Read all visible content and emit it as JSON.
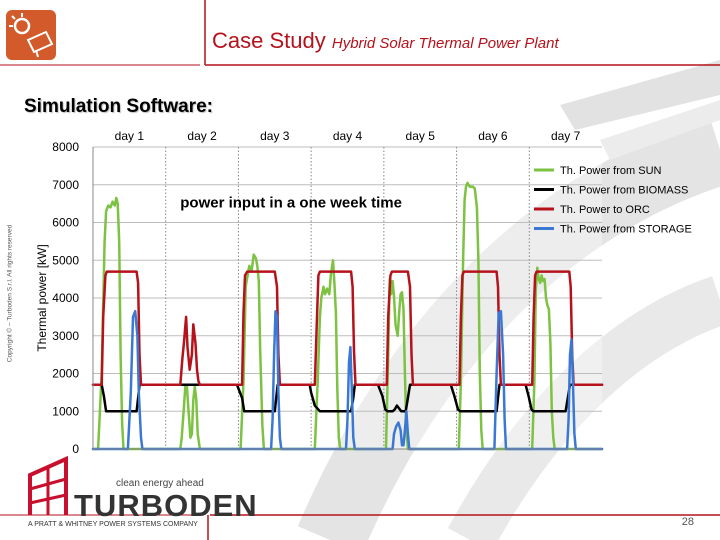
{
  "header": {
    "title": "Case Study",
    "subtitle": "Hybrid Solar Thermal Power Plant",
    "accent_color": "#b5121b"
  },
  "section": {
    "heading": "Simulation Software:"
  },
  "sidebar": {
    "copyright": "Copyright © – Turboden S.r.l. All rights reserved"
  },
  "footer": {
    "brand_tagline": "clean energy ahead",
    "brand_name": "TURBODEN",
    "brand_caption": "A PRATT & WHITNEY POWER SYSTEMS COMPANY",
    "page_number": "28"
  },
  "chart_data": {
    "type": "line",
    "title": "",
    "annotation": "power input in a one week time",
    "xlabel": "",
    "ylabel": "Thermal power [kW]",
    "ylim": [
      0,
      8000
    ],
    "yticks": [
      0,
      1000,
      2000,
      3000,
      4000,
      5000,
      6000,
      7000,
      8000
    ],
    "xlim": [
      0,
      7
    ],
    "categories": [
      "day 1",
      "day 2",
      "day 3",
      "day 4",
      "day 5",
      "day 6",
      "day 7"
    ],
    "grid": "horizontal and dotted day separators",
    "legend_position": "top-right",
    "series": [
      {
        "name": "Th. Power from SUN",
        "color": "#7dc242",
        "width": 2.5,
        "points": [
          [
            0,
            0
          ],
          [
            0.07,
            0
          ],
          [
            0.12,
            2000
          ],
          [
            0.16,
            5500
          ],
          [
            0.18,
            6300
          ],
          [
            0.21,
            6450
          ],
          [
            0.24,
            6400
          ],
          [
            0.27,
            6550
          ],
          [
            0.3,
            6450
          ],
          [
            0.32,
            6650
          ],
          [
            0.34,
            6500
          ],
          [
            0.36,
            5500
          ],
          [
            0.38,
            2500
          ],
          [
            0.4,
            700
          ],
          [
            0.42,
            0
          ],
          [
            1.2,
            0
          ],
          [
            1.22,
            300
          ],
          [
            1.25,
            1100
          ],
          [
            1.27,
            1650
          ],
          [
            1.29,
            1700
          ],
          [
            1.31,
            1100
          ],
          [
            1.34,
            300
          ],
          [
            1.36,
            400
          ],
          [
            1.38,
            1300
          ],
          [
            1.4,
            1650
          ],
          [
            1.42,
            1300
          ],
          [
            1.44,
            400
          ],
          [
            1.47,
            0
          ],
          [
            2.03,
            0
          ],
          [
            2.07,
            1800
          ],
          [
            2.1,
            4300
          ],
          [
            2.13,
            4650
          ],
          [
            2.15,
            4850
          ],
          [
            2.18,
            4700
          ],
          [
            2.21,
            5150
          ],
          [
            2.24,
            5050
          ],
          [
            2.26,
            4850
          ],
          [
            2.28,
            4450
          ],
          [
            2.3,
            2600
          ],
          [
            2.33,
            600
          ],
          [
            2.35,
            0
          ],
          [
            3.05,
            0
          ],
          [
            3.09,
            1800
          ],
          [
            3.12,
            3500
          ],
          [
            3.14,
            4000
          ],
          [
            3.17,
            4300
          ],
          [
            3.19,
            4100
          ],
          [
            3.22,
            4250
          ],
          [
            3.25,
            4100
          ],
          [
            3.27,
            4600
          ],
          [
            3.3,
            5000
          ],
          [
            3.32,
            4400
          ],
          [
            3.34,
            3600
          ],
          [
            3.36,
            1600
          ],
          [
            3.38,
            300
          ],
          [
            3.4,
            0
          ],
          [
            4.03,
            0
          ],
          [
            4.06,
            2500
          ],
          [
            4.08,
            4500
          ],
          [
            4.1,
            4100
          ],
          [
            4.12,
            4450
          ],
          [
            4.14,
            4050
          ],
          [
            4.16,
            3300
          ],
          [
            4.19,
            3000
          ],
          [
            4.21,
            3600
          ],
          [
            4.23,
            4100
          ],
          [
            4.25,
            4150
          ],
          [
            4.27,
            3700
          ],
          [
            4.29,
            2000
          ],
          [
            4.31,
            500
          ],
          [
            4.33,
            0
          ],
          [
            5.03,
            0
          ],
          [
            5.06,
            1800
          ],
          [
            5.09,
            5000
          ],
          [
            5.11,
            6600
          ],
          [
            5.13,
            6950
          ],
          [
            5.15,
            7050
          ],
          [
            5.18,
            6950
          ],
          [
            5.22,
            6950
          ],
          [
            5.25,
            6900
          ],
          [
            5.28,
            6400
          ],
          [
            5.3,
            5000
          ],
          [
            5.32,
            2000
          ],
          [
            5.34,
            500
          ],
          [
            5.36,
            0
          ],
          [
            6.04,
            0
          ],
          [
            6.07,
            1800
          ],
          [
            6.09,
            4200
          ],
          [
            6.11,
            4800
          ],
          [
            6.13,
            4500
          ],
          [
            6.15,
            4400
          ],
          [
            6.17,
            4600
          ],
          [
            6.19,
            4450
          ],
          [
            6.21,
            4500
          ],
          [
            6.23,
            4000
          ],
          [
            6.25,
            3800
          ],
          [
            6.27,
            3700
          ],
          [
            6.29,
            2800
          ],
          [
            6.31,
            1000
          ],
          [
            6.33,
            300
          ],
          [
            6.35,
            0
          ],
          [
            7,
            0
          ]
        ]
      },
      {
        "name": "Th. Power from BIOMASS",
        "color": "#000000",
        "width": 2.5,
        "points": [
          [
            0,
            1700
          ],
          [
            0.12,
            1700
          ],
          [
            0.15,
            1400
          ],
          [
            0.18,
            1000
          ],
          [
            0.6,
            1000
          ],
          [
            0.62,
            1350
          ],
          [
            0.64,
            1700
          ],
          [
            1.88,
            1700
          ],
          [
            1.92,
            1700
          ],
          [
            1.98,
            1700
          ],
          [
            2.05,
            1350
          ],
          [
            2.08,
            1000
          ],
          [
            2.5,
            1000
          ],
          [
            2.52,
            1350
          ],
          [
            2.54,
            1700
          ],
          [
            2.98,
            1700
          ],
          [
            3.0,
            1500
          ],
          [
            3.05,
            1150
          ],
          [
            3.12,
            1000
          ],
          [
            3.4,
            1000
          ],
          [
            3.55,
            1000
          ],
          [
            3.58,
            1350
          ],
          [
            3.6,
            1700
          ],
          [
            3.92,
            1700
          ],
          [
            3.98,
            1400
          ],
          [
            4.02,
            1050
          ],
          [
            4.05,
            1000
          ],
          [
            4.12,
            1000
          ],
          [
            4.15,
            1050
          ],
          [
            4.18,
            1150
          ],
          [
            4.24,
            1000
          ],
          [
            4.3,
            1000
          ],
          [
            4.33,
            1350
          ],
          [
            4.36,
            1700
          ],
          [
            4.92,
            1700
          ],
          [
            4.97,
            1400
          ],
          [
            5.02,
            1050
          ],
          [
            5.05,
            1000
          ],
          [
            5.55,
            1000
          ],
          [
            5.57,
            1350
          ],
          [
            5.59,
            1700
          ],
          [
            5.95,
            1700
          ],
          [
            5.99,
            1400
          ],
          [
            6.03,
            1050
          ],
          [
            6.06,
            1000
          ],
          [
            6.5,
            1000
          ],
          [
            6.53,
            1350
          ],
          [
            6.56,
            1700
          ],
          [
            7,
            1700
          ]
        ]
      },
      {
        "name": "Th. Power to ORC",
        "color": "#b5121b",
        "width": 2.5,
        "points": [
          [
            0,
            1700
          ],
          [
            0.12,
            1700
          ],
          [
            0.14,
            3500
          ],
          [
            0.17,
            4600
          ],
          [
            0.19,
            4700
          ],
          [
            0.6,
            4700
          ],
          [
            0.62,
            4400
          ],
          [
            0.64,
            2500
          ],
          [
            0.66,
            1700
          ],
          [
            1.2,
            1700
          ],
          [
            1.23,
            2400
          ],
          [
            1.25,
            2800
          ],
          [
            1.28,
            3500
          ],
          [
            1.3,
            2700
          ],
          [
            1.33,
            2100
          ],
          [
            1.36,
            2500
          ],
          [
            1.38,
            3300
          ],
          [
            1.41,
            2800
          ],
          [
            1.43,
            2100
          ],
          [
            1.45,
            1800
          ],
          [
            1.47,
            1700
          ],
          [
            2.05,
            1700
          ],
          [
            2.07,
            3600
          ],
          [
            2.09,
            4600
          ],
          [
            2.12,
            4700
          ],
          [
            2.5,
            4700
          ],
          [
            2.53,
            4300
          ],
          [
            2.55,
            2500
          ],
          [
            2.57,
            1700
          ],
          [
            3.05,
            1700
          ],
          [
            3.08,
            3500
          ],
          [
            3.1,
            4600
          ],
          [
            3.12,
            4700
          ],
          [
            3.55,
            4700
          ],
          [
            3.57,
            4300
          ],
          [
            3.59,
            2600
          ],
          [
            3.61,
            1700
          ],
          [
            4.04,
            1700
          ],
          [
            4.06,
            3500
          ],
          [
            4.09,
            4600
          ],
          [
            4.11,
            4700
          ],
          [
            4.33,
            4700
          ],
          [
            4.36,
            4300
          ],
          [
            4.38,
            2500
          ],
          [
            4.4,
            1700
          ],
          [
            5.04,
            1700
          ],
          [
            5.06,
            3500
          ],
          [
            5.08,
            4600
          ],
          [
            5.1,
            4700
          ],
          [
            5.55,
            4700
          ],
          [
            5.57,
            4300
          ],
          [
            5.59,
            2500
          ],
          [
            5.61,
            1700
          ],
          [
            6.04,
            1700
          ],
          [
            6.06,
            3500
          ],
          [
            6.08,
            4600
          ],
          [
            6.1,
            4700
          ],
          [
            6.55,
            4700
          ],
          [
            6.57,
            4300
          ],
          [
            6.59,
            2500
          ],
          [
            6.61,
            1700
          ],
          [
            7,
            1700
          ]
        ]
      },
      {
        "name": "Th. Power from STORAGE",
        "color": "#3b78d4",
        "width": 2.5,
        "points": [
          [
            0,
            0
          ],
          [
            0.48,
            0
          ],
          [
            0.52,
            1500
          ],
          [
            0.55,
            3500
          ],
          [
            0.58,
            3650
          ],
          [
            0.61,
            3000
          ],
          [
            0.63,
            1500
          ],
          [
            0.66,
            300
          ],
          [
            0.68,
            0
          ],
          [
            2.45,
            0
          ],
          [
            2.47,
            800
          ],
          [
            2.49,
            2500
          ],
          [
            2.51,
            3650
          ],
          [
            2.53,
            3500
          ],
          [
            2.55,
            1500
          ],
          [
            2.57,
            300
          ],
          [
            2.59,
            0
          ],
          [
            3.48,
            0
          ],
          [
            3.5,
            800
          ],
          [
            3.52,
            2300
          ],
          [
            3.54,
            2700
          ],
          [
            3.56,
            1500
          ],
          [
            3.58,
            300
          ],
          [
            3.6,
            0
          ],
          [
            4.12,
            0
          ],
          [
            4.14,
            400
          ],
          [
            4.17,
            600
          ],
          [
            4.2,
            700
          ],
          [
            4.23,
            500
          ],
          [
            4.25,
            100
          ],
          [
            4.27,
            100
          ],
          [
            4.29,
            500
          ],
          [
            4.31,
            1000
          ],
          [
            4.33,
            400
          ],
          [
            4.35,
            0
          ],
          [
            5.52,
            0
          ],
          [
            5.55,
            2000
          ],
          [
            5.58,
            3600
          ],
          [
            5.61,
            3650
          ],
          [
            5.64,
            2500
          ],
          [
            5.66,
            800
          ],
          [
            5.68,
            0
          ],
          [
            6.52,
            0
          ],
          [
            6.54,
            800
          ],
          [
            6.56,
            2500
          ],
          [
            6.58,
            2900
          ],
          [
            6.6,
            1800
          ],
          [
            6.62,
            400
          ],
          [
            6.64,
            0
          ],
          [
            7,
            0
          ]
        ]
      }
    ]
  }
}
